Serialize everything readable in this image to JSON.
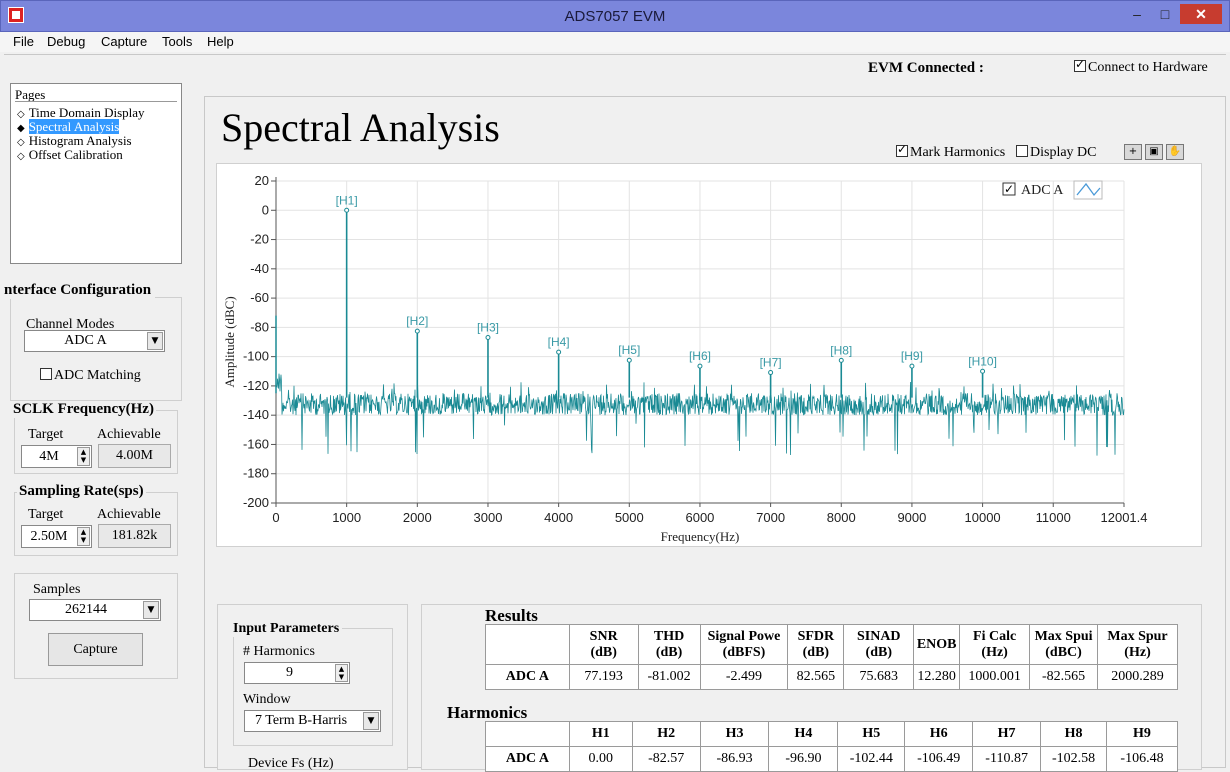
{
  "window": {
    "title": "ADS7057 EVM",
    "minimize": "–",
    "maximize": "□",
    "close": "✕"
  },
  "menu": [
    "File",
    "Debug",
    "Capture",
    "Tools",
    "Help"
  ],
  "status": {
    "evm_connected": "EVM Connected :",
    "connect_hw": "Connect to Hardware"
  },
  "pages": {
    "header": "Pages",
    "items": [
      "Time Domain Display",
      "Spectral Analysis",
      "Histogram Analysis",
      "Offset Calibration"
    ],
    "selected": "Spectral Analysis"
  },
  "interface": {
    "title": "nterface Configuration",
    "channel_modes_label": "Channel Modes",
    "channel_mode": "ADC A",
    "adc_matching": "ADC Matching"
  },
  "sclk": {
    "title": "SCLK Frequency(Hz)",
    "target_label": "Target",
    "achievable_label": "Achievable",
    "target": "4M",
    "achievable": "4.00M"
  },
  "sampling": {
    "title": "Sampling Rate(sps)",
    "target_label": "Target",
    "achievable_label": "Achievable",
    "target": "2.50M",
    "achievable": "181.82k"
  },
  "samples": {
    "label": "Samples",
    "value": "262144",
    "capture": "Capture"
  },
  "main": {
    "title": "Spectral Analysis",
    "mark_harmonics": "Mark Harmonics",
    "display_dc": "Display DC",
    "tools": {
      "zoom": "+",
      "select": "▣",
      "pan": "✋"
    }
  },
  "chart_data": {
    "type": "line",
    "xlabel": "Frequency(Hz)",
    "ylabel": "Amplitude (dBC)",
    "xlim": [
      0,
      12001.4
    ],
    "ylim": [
      -200,
      20
    ],
    "xticks": [
      "0",
      "1000",
      "2000",
      "3000",
      "4000",
      "5000",
      "6000",
      "7000",
      "8000",
      "9000",
      "10000",
      "11000",
      "12001.4"
    ],
    "yticks": [
      "20",
      "0",
      "-20",
      "-40",
      "-60",
      "-80",
      "-100",
      "-120",
      "-140",
      "-160",
      "-180",
      "-200"
    ],
    "grid": true,
    "legend": "top-right",
    "series": [
      {
        "name": "ADC A",
        "color": "#1a8a94"
      }
    ],
    "noise_floor": [
      -125,
      -140
    ],
    "harmonics": [
      {
        "label": "[H1]",
        "x": 1000,
        "y": 0.0
      },
      {
        "label": "[H2]",
        "x": 2000,
        "y": -82.57
      },
      {
        "label": "[H3]",
        "x": 3000,
        "y": -86.93
      },
      {
        "label": "[H4]",
        "x": 4000,
        "y": -96.9
      },
      {
        "label": "[H5]",
        "x": 5000,
        "y": -102.44
      },
      {
        "label": "[H6]",
        "x": 6000,
        "y": -106.49
      },
      {
        "label": "[H7]",
        "x": 7000,
        "y": -110.87
      },
      {
        "label": "[H8]",
        "x": 8000,
        "y": -102.58
      },
      {
        "label": "[H9]",
        "x": 9000,
        "y": -106.48
      },
      {
        "label": "[H10]",
        "x": 10000,
        "y": -110
      }
    ]
  },
  "input_params": {
    "title": "Input Parameters",
    "harmonics_label": "# Harmonics",
    "harmonics": "9",
    "window_label": "Window",
    "window": "7 Term B-Harris",
    "device_fs_label": "Device Fs (Hz)"
  },
  "results": {
    "title": "Results",
    "headers": [
      [
        "SNR",
        "(dB)"
      ],
      [
        "THD",
        "(dB)"
      ],
      [
        "Signal Powe",
        "(dBFS)"
      ],
      [
        "SFDR",
        "(dB)"
      ],
      [
        "SINAD",
        "(dB)"
      ],
      [
        "ENOB",
        ""
      ],
      [
        "Fi Calc",
        "(Hz)"
      ],
      [
        "Max Spui",
        "(dBC)"
      ],
      [
        "Max Spur",
        "(Hz)"
      ]
    ],
    "row_label": "ADC A",
    "values": [
      "77.193",
      "-81.002",
      "-2.499",
      "82.565",
      "75.683",
      "12.280",
      "1000.001",
      "-82.565",
      "2000.289"
    ]
  },
  "harmonics_table": {
    "title": "Harmonics",
    "headers": [
      "H1",
      "H2",
      "H3",
      "H4",
      "H5",
      "H6",
      "H7",
      "H8",
      "H9"
    ],
    "row_label": "ADC A",
    "values": [
      "0.00",
      "-82.57",
      "-86.93",
      "-96.90",
      "-102.44",
      "-106.49",
      "-110.87",
      "-102.58",
      "-106.48"
    ]
  }
}
